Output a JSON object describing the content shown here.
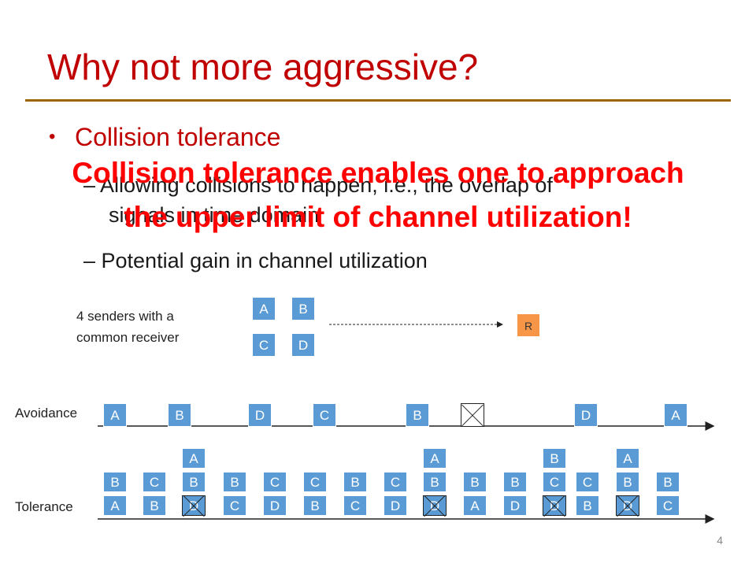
{
  "slide": {
    "title": "Why not more aggressive?",
    "bullet": "Collision tolerance",
    "sub_bullets": [
      "– Allowing collisions to happen, i.e., the overlap of",
      "signals in time domain",
      "– Potential gain in channel utilization"
    ],
    "overlay_lines": [
      "Collision tolerance enables one to approach",
      "the upper limit of channel utilization!"
    ],
    "page_number": "4"
  },
  "senders": {
    "note_lines": [
      "4 senders with a",
      "common receiver"
    ],
    "boxes": [
      "A",
      "B",
      "C",
      "D"
    ],
    "receiver": "R"
  },
  "avoidance": {
    "label": "Avoidance",
    "slots": [
      "A",
      "B",
      "D",
      "C",
      "B",
      "",
      "D",
      "A"
    ]
  },
  "tolerance": {
    "label": "Tolerance",
    "stacks": [
      [
        "A",
        "B"
      ],
      [
        "B",
        "C"
      ],
      [
        "D",
        "B",
        "A"
      ],
      [
        "C",
        "B"
      ],
      [
        "D",
        "C"
      ],
      [
        "B",
        "C"
      ],
      [
        "C",
        "B"
      ],
      [
        "D",
        "C"
      ],
      [
        "D",
        "B",
        "A"
      ],
      [
        "A",
        "B"
      ],
      [
        "D",
        "B"
      ],
      [
        "D",
        "C",
        "B"
      ],
      [
        "B",
        "C"
      ],
      [
        "D",
        "B",
        "A"
      ],
      [
        "C",
        "B"
      ]
    ]
  },
  "colors": {
    "title": "#c00000",
    "overlay": "#ff0000",
    "rule": "#996600",
    "sender_box": "#5b9bd5",
    "receiver_box": "#f79646"
  }
}
